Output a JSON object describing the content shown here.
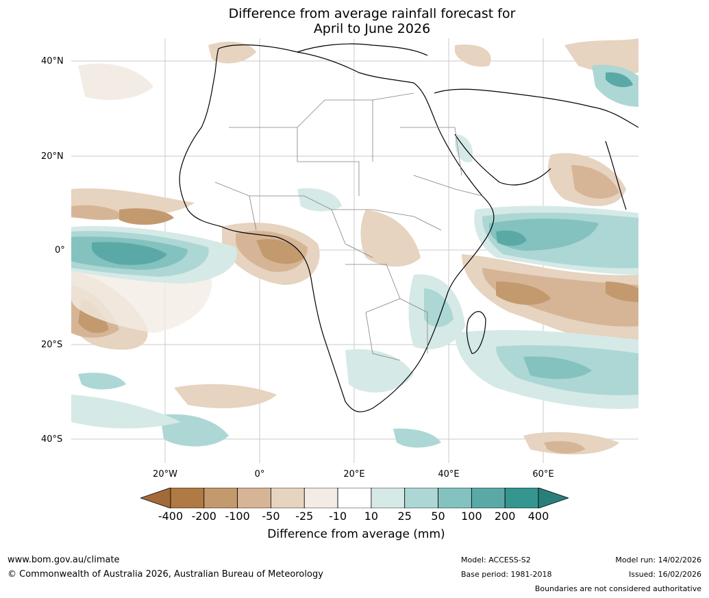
{
  "title_line1": "Difference from average rainfall forecast for",
  "title_line2": "April to June 2026",
  "lat_labels": [
    "40°N",
    "20°N",
    "0°",
    "20°S",
    "40°S"
  ],
  "lon_labels": [
    "20°W",
    "0°",
    "20°E",
    "40°E",
    "60°E"
  ],
  "colorbar": {
    "ticks": [
      "-400",
      "-200",
      "-100",
      "-50",
      "-25",
      "-10",
      "10",
      "25",
      "50",
      "100",
      "200",
      "400"
    ],
    "colors": [
      "#a26a38",
      "#b07a45",
      "#c39a6e",
      "#d6b596",
      "#e6d3c0",
      "#f2ece4",
      "#ffffff",
      "#d5e9e7",
      "#acd7d4",
      "#84c2bf",
      "#5aa9a6",
      "#35958f",
      "#2b7f7a"
    ],
    "label": "Difference from average (mm)"
  },
  "footer": {
    "website": "www.bom.gov.au/climate",
    "copyright": "© Commonwealth of Australia 2026, Australian Bureau of Meteorology",
    "model": "Model: ACCESS-S2",
    "base_period": "Base period: 1981-2018",
    "model_run": "Model run: 14/02/2026",
    "issued": "Issued: 16/02/2026",
    "disclaimer": "Boundaries are not considered authoritative"
  }
}
